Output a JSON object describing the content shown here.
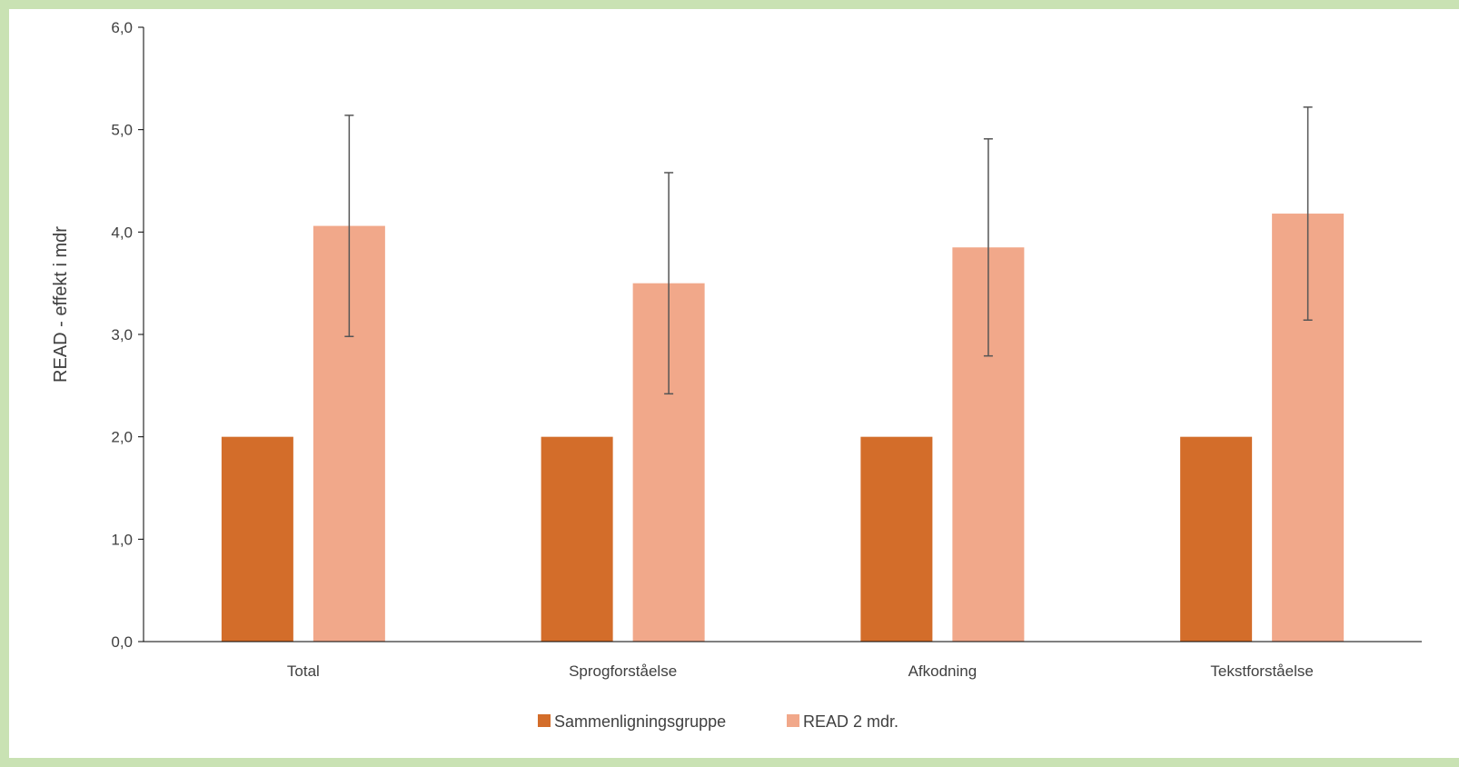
{
  "colors": {
    "comparison": "#d36d2a",
    "read": "#f1a88a",
    "axis": "#000000",
    "errorbar": "#555555",
    "text": "#404040",
    "page_border": "#c9e2b3"
  },
  "chart_data": {
    "type": "bar",
    "categories": [
      "Total",
      "Sprogforståelse",
      "Afkodning",
      "Tekstforståelse"
    ],
    "series": [
      {
        "name": "Sammenligningsgruppe",
        "values": [
          2.0,
          2.0,
          2.0,
          2.0
        ]
      },
      {
        "name": "READ 2 mdr.",
        "values": [
          4.06,
          3.5,
          3.85,
          4.18
        ],
        "error_low": [
          2.98,
          2.42,
          2.79,
          3.14
        ],
        "error_high": [
          5.14,
          4.58,
          4.91,
          5.22
        ]
      }
    ],
    "ylabel": "READ - effekt i mdr",
    "xlabel": "",
    "ylim": [
      0,
      6
    ],
    "yticks": [
      "0,0",
      "1,0",
      "2,0",
      "3,0",
      "4,0",
      "5,0",
      "6,0"
    ],
    "grid": false,
    "legend_position": "bottom"
  }
}
